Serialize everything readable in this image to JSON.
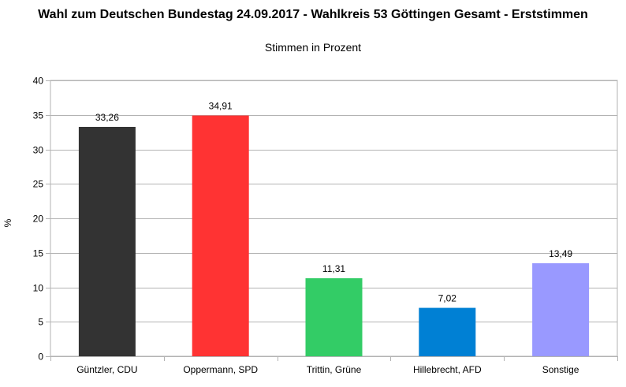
{
  "chart_data": {
    "type": "bar",
    "title": "Wahl zum Deutschen Bundestag 24.09.2017 - Wahlkreis 53 Göttingen Gesamt - Erststimmen",
    "subtitle": "Stimmen in Prozent",
    "xlabel": "",
    "ylabel": "%",
    "ylim": [
      0,
      40
    ],
    "yticks": [
      0,
      5,
      10,
      15,
      20,
      25,
      30,
      35,
      40
    ],
    "grid": true,
    "legend": "none",
    "categories": [
      "Güntzler, CDU",
      "Oppermann, SPD",
      "Trittin, Grüne",
      "Hillebrecht, AFD",
      "Sonstige"
    ],
    "values": [
      33.26,
      34.91,
      11.31,
      7.02,
      13.49
    ],
    "value_labels": [
      "33,26",
      "34,91",
      "11,31",
      "7,02",
      "13,49"
    ],
    "colors": [
      "#333333",
      "#ff3333",
      "#33cc66",
      "#0080d4",
      "#9999ff"
    ]
  }
}
